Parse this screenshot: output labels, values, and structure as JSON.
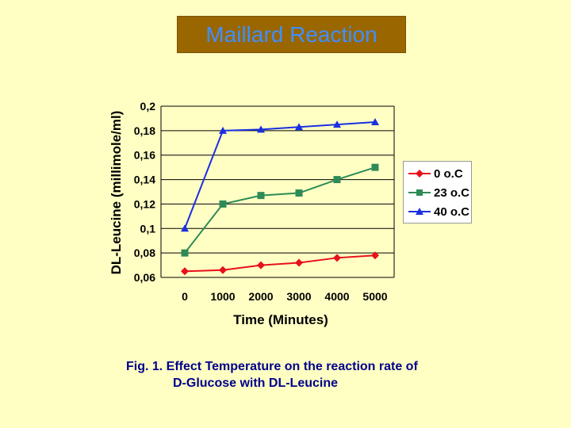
{
  "title": "Maillard Reaction",
  "caption": {
    "line1": "Fig. 1. Effect Temperature on the reaction rate of",
    "line2": "D-Glucose with DL-Leucine"
  },
  "colors": {
    "background": "#FFFFC4",
    "title_box": "#996600",
    "title_text": "#3F8FFF",
    "caption_text": "#00008B"
  },
  "chart_data": {
    "type": "line",
    "xlabel": "Time (Minutes)",
    "ylabel": "DL-Leucine (millimole/ml)",
    "categories": [
      "0",
      "1000",
      "2000",
      "3000",
      "4000",
      "5000"
    ],
    "x": [
      0,
      1000,
      2000,
      3000,
      4000,
      5000
    ],
    "ylim": [
      0.06,
      0.2
    ],
    "yticks": [
      "0,2",
      "0,18",
      "0,16",
      "0,14",
      "0,12",
      "0,1",
      "0,08",
      "0,06"
    ],
    "ytick_values": [
      0.2,
      0.18,
      0.16,
      0.14,
      0.12,
      0.1,
      0.08,
      0.06
    ],
    "grid": "horizontal",
    "legend_position": "right",
    "series": [
      {
        "name": "0 o.C",
        "color": "#E8101A",
        "marker": "diamond",
        "values": [
          0.065,
          0.066,
          0.07,
          0.072,
          0.076,
          0.078
        ]
      },
      {
        "name": "23 o.C",
        "color": "#2E8B57",
        "marker": "square",
        "values": [
          0.08,
          0.12,
          0.127,
          0.129,
          0.14,
          0.15
        ]
      },
      {
        "name": "40 o.C",
        "color": "#1A2FE0",
        "marker": "triangle",
        "values": [
          0.1,
          0.18,
          0.181,
          0.183,
          0.185,
          0.187
        ]
      }
    ]
  }
}
